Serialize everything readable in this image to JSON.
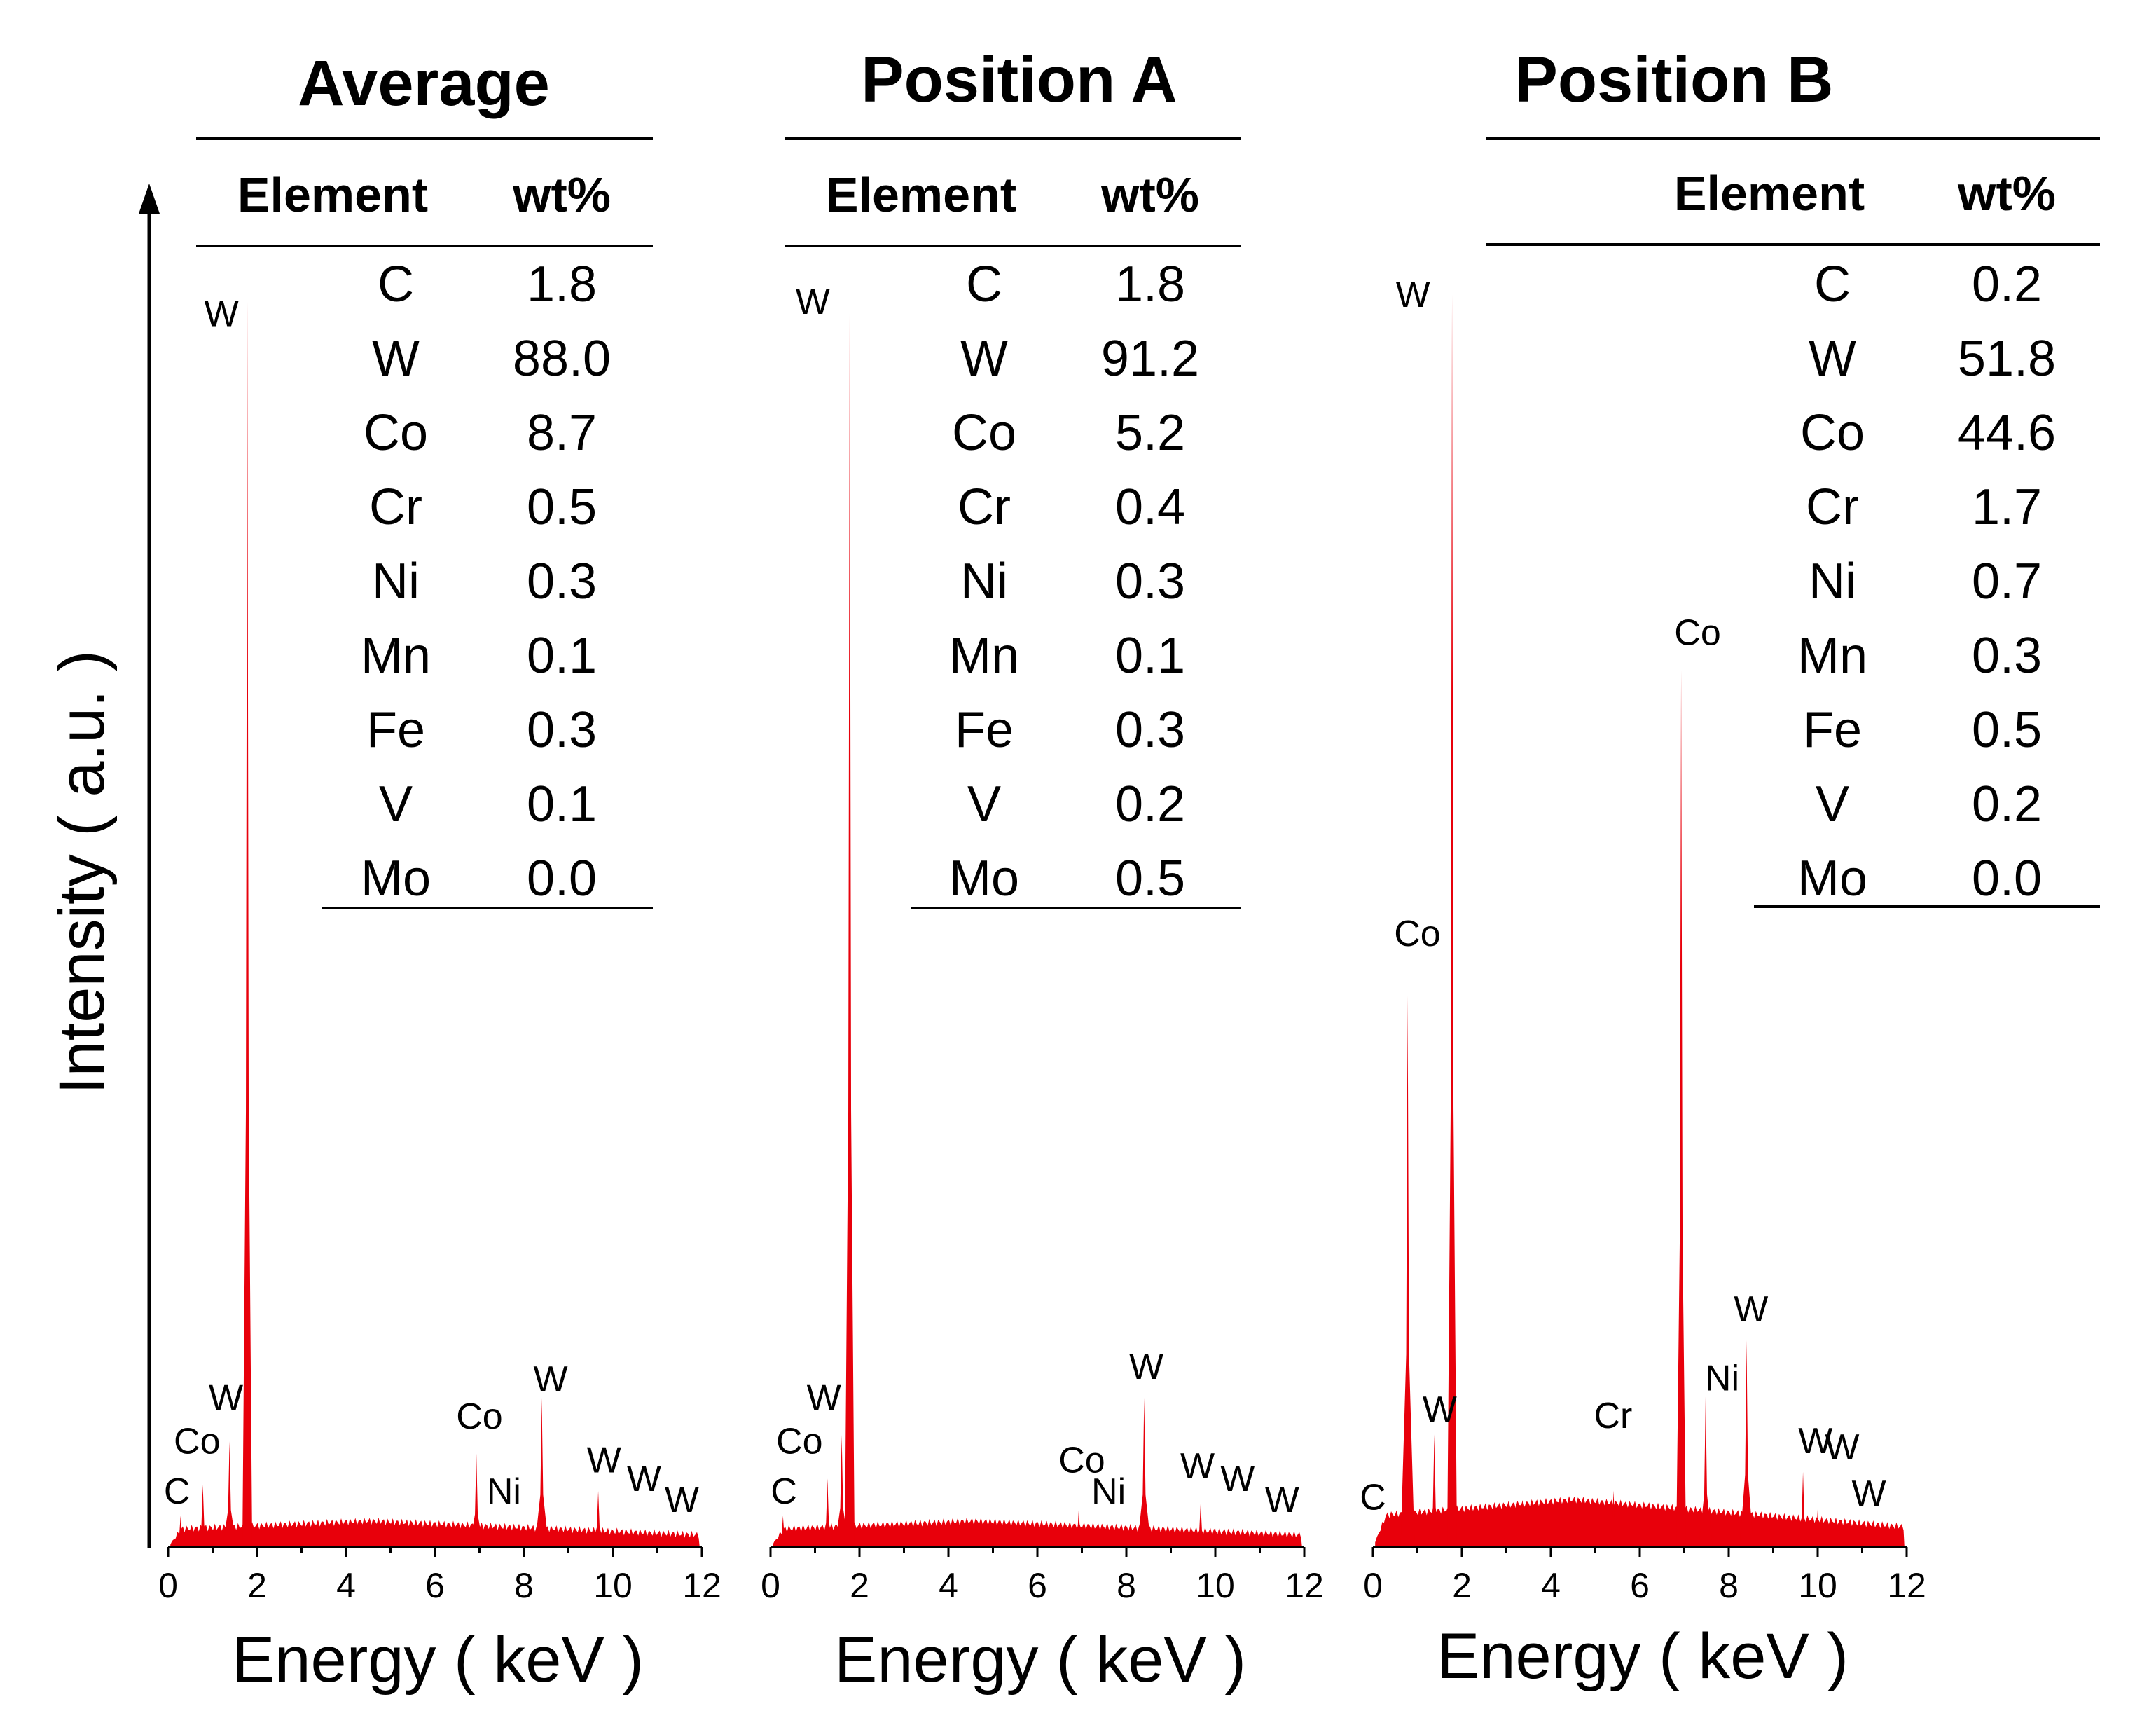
{
  "chart_data": {
    "type": "area",
    "y_axis_label": "Intensity ( a.u. )",
    "accent_color": "#e8000b",
    "table_headers": {
      "element": "Element",
      "wt": "wt%"
    },
    "panels": [
      {
        "title": "Average",
        "xlabel": "Energy ( keV )",
        "xlim": [
          0,
          12
        ],
        "xticks": [
          0,
          2,
          4,
          6,
          8,
          10,
          12
        ],
        "table": [
          {
            "element": "C",
            "wt": "1.8"
          },
          {
            "element": "W",
            "wt": "88.0"
          },
          {
            "element": "Co",
            "wt": "8.7"
          },
          {
            "element": "Cr",
            "wt": "0.5"
          },
          {
            "element": "Ni",
            "wt": "0.3"
          },
          {
            "element": "Mn",
            "wt": "0.1"
          },
          {
            "element": "Fe",
            "wt": "0.3"
          },
          {
            "element": "V",
            "wt": "0.1"
          },
          {
            "element": "Mo",
            "wt": "0.0"
          }
        ],
        "peaks": [
          {
            "energy": 0.28,
            "height": 0.025,
            "label": "C",
            "label_energy": 0.2,
            "label_height": 0.035
          },
          {
            "energy": 0.78,
            "height": 0.05,
            "label": "Co",
            "label_energy": 0.65,
            "label_height": 0.075
          },
          {
            "energy": 1.38,
            "height": 0.085,
            "label": "W",
            "label_energy": 1.3,
            "label_height": 0.11
          },
          {
            "energy": 1.78,
            "height": 1.0,
            "label": "W",
            "label_energy": 1.2,
            "label_height": 0.98
          },
          {
            "energy": 6.93,
            "height": 0.075,
            "label": "Co",
            "label_energy": 7.0,
            "label_height": 0.095
          },
          {
            "energy": 7.48,
            "height": 0.012,
            "label": "Ni",
            "label_energy": 7.55,
            "label_height": 0.035
          },
          {
            "energy": 8.4,
            "height": 0.12,
            "label": "W",
            "label_energy": 8.6,
            "label_height": 0.125
          },
          {
            "energy": 9.67,
            "height": 0.045,
            "label": "W",
            "label_energy": 9.8,
            "label_height": 0.06
          },
          {
            "energy": 11.3,
            "height": 0.008,
            "label": "W",
            "label_energy": 10.7,
            "label_height": 0.045
          },
          {
            "energy": 11.6,
            "height": 0.008,
            "label": "W",
            "label_energy": 11.55,
            "label_height": 0.028
          }
        ]
      },
      {
        "title": "Position A",
        "xlabel": "Energy ( keV )",
        "xlim": [
          0,
          12
        ],
        "xticks": [
          0,
          2,
          4,
          6,
          8,
          10,
          12
        ],
        "table": [
          {
            "element": "C",
            "wt": "1.8"
          },
          {
            "element": "W",
            "wt": "91.2"
          },
          {
            "element": "Co",
            "wt": "5.2"
          },
          {
            "element": "Cr",
            "wt": "0.4"
          },
          {
            "element": "Ni",
            "wt": "0.3"
          },
          {
            "element": "Mn",
            "wt": "0.1"
          },
          {
            "element": "Fe",
            "wt": "0.3"
          },
          {
            "element": "V",
            "wt": "0.2"
          },
          {
            "element": "Mo",
            "wt": "0.5"
          }
        ],
        "peaks": [
          {
            "energy": 0.28,
            "height": 0.025,
            "label": "C",
            "label_energy": 0.3,
            "label_height": 0.035
          },
          {
            "energy": 1.28,
            "height": 0.055,
            "label": "Co",
            "label_energy": 0.65,
            "label_height": 0.075
          },
          {
            "energy": 1.6,
            "height": 0.09,
            "label": "W",
            "label_energy": 1.2,
            "label_height": 0.11
          },
          {
            "energy": 1.78,
            "height": 1.0,
            "label": "W",
            "label_energy": 0.95,
            "label_height": 0.99
          },
          {
            "energy": 6.93,
            "height": 0.03,
            "label": "Co",
            "label_energy": 7.0,
            "label_height": 0.06
          },
          {
            "energy": 7.48,
            "height": 0.008,
            "label": "Ni",
            "label_energy": 7.6,
            "label_height": 0.035
          },
          {
            "energy": 8.4,
            "height": 0.12,
            "label": "W",
            "label_energy": 8.45,
            "label_height": 0.135
          },
          {
            "energy": 9.67,
            "height": 0.035,
            "label": "W",
            "label_energy": 9.6,
            "label_height": 0.055
          },
          {
            "energy": 10.0,
            "height": 0.015,
            "label": "W",
            "label_energy": 10.5,
            "label_height": 0.045
          },
          {
            "energy": 11.3,
            "height": 0.01,
            "label": "W",
            "label_energy": 11.5,
            "label_height": 0.028
          }
        ]
      },
      {
        "title": "Position B",
        "xlabel": "Energy ( keV )",
        "xlim": [
          0,
          12
        ],
        "xticks": [
          0,
          2,
          4,
          6,
          8,
          10,
          12
        ],
        "table": [
          {
            "element": "C",
            "wt": "0.2"
          },
          {
            "element": "W",
            "wt": "51.8"
          },
          {
            "element": "Co",
            "wt": "44.6"
          },
          {
            "element": "Cr",
            "wt": "1.7"
          },
          {
            "element": "Ni",
            "wt": "0.7"
          },
          {
            "element": "Mn",
            "wt": "0.3"
          },
          {
            "element": "Fe",
            "wt": "0.5"
          },
          {
            "element": "V",
            "wt": "0.2"
          },
          {
            "element": "Mo",
            "wt": "0.0"
          }
        ],
        "peaks": [
          {
            "energy": 0.28,
            "height": 0.015,
            "label": "C",
            "label_energy": 0.0,
            "label_height": 0.03
          },
          {
            "energy": 0.78,
            "height": 0.44,
            "label": "Co",
            "label_energy": 1.0,
            "label_height": 0.48
          },
          {
            "energy": 1.38,
            "height": 0.09,
            "label": "W",
            "label_energy": 1.5,
            "label_height": 0.1
          },
          {
            "energy": 1.78,
            "height": 1.0,
            "label": "W",
            "label_energy": 0.9,
            "label_height": 0.99
          },
          {
            "energy": 5.41,
            "height": 0.045,
            "label": "Cr",
            "label_energy": 5.4,
            "label_height": 0.095
          },
          {
            "energy": 6.93,
            "height": 0.7,
            "label": "Co",
            "label_energy": 7.3,
            "label_height": 0.72
          },
          {
            "energy": 7.48,
            "height": 0.12,
            "label": "Ni",
            "label_energy": 7.85,
            "label_height": 0.125
          },
          {
            "energy": 8.4,
            "height": 0.165,
            "label": "W",
            "label_energy": 8.5,
            "label_height": 0.18
          },
          {
            "energy": 9.67,
            "height": 0.06,
            "label": "W",
            "label_energy": 9.95,
            "label_height": 0.075
          },
          {
            "energy": 10.0,
            "height": 0.03,
            "label": "W",
            "label_energy": 10.55,
            "label_height": 0.07
          },
          {
            "energy": 11.3,
            "height": 0.012,
            "label": "W",
            "label_energy": 11.15,
            "label_height": 0.033
          }
        ]
      }
    ]
  }
}
